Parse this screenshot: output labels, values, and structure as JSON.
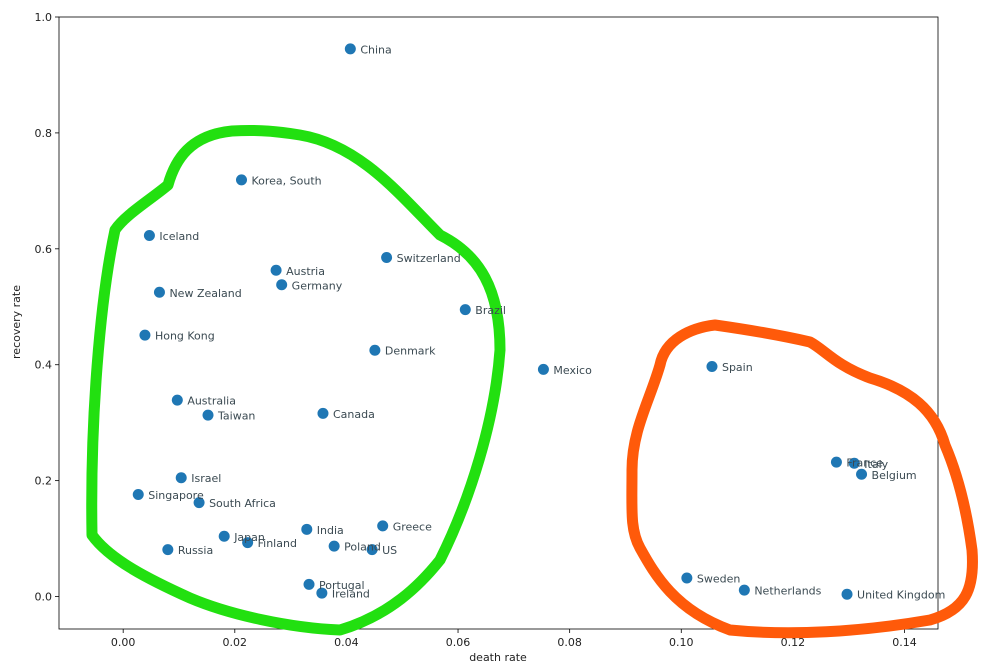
{
  "chart_data": {
    "type": "scatter",
    "title": "",
    "xlabel": "death rate",
    "ylabel": "recovery rate",
    "xlim": [
      -0.0115,
      0.146
    ],
    "ylim": [
      -0.056,
      1.0
    ],
    "xticks": [
      "0.00",
      "0.02",
      "0.04",
      "0.06",
      "0.08",
      "0.10",
      "0.12",
      "0.14"
    ],
    "yticks": [
      "0.0",
      "0.2",
      "0.4",
      "0.6",
      "0.8",
      "1.0"
    ],
    "grid": false,
    "point_color": "#1f77b4",
    "points": [
      {
        "label": "China",
        "x": 0.0407,
        "y": 0.945
      },
      {
        "label": "Korea, South",
        "x": 0.0212,
        "y": 0.719
      },
      {
        "label": "Iceland",
        "x": 0.0047,
        "y": 0.623
      },
      {
        "label": "Switzerland",
        "x": 0.0472,
        "y": 0.585
      },
      {
        "label": "Austria",
        "x": 0.0274,
        "y": 0.563
      },
      {
        "label": "Germany",
        "x": 0.0284,
        "y": 0.538
      },
      {
        "label": "New Zealand",
        "x": 0.0065,
        "y": 0.525
      },
      {
        "label": "Brazil",
        "x": 0.0613,
        "y": 0.495
      },
      {
        "label": "Hong Kong",
        "x": 0.0039,
        "y": 0.451
      },
      {
        "label": "Denmark",
        "x": 0.0451,
        "y": 0.425
      },
      {
        "label": "Mexico",
        "x": 0.0753,
        "y": 0.392
      },
      {
        "label": "Spain",
        "x": 0.1055,
        "y": 0.397
      },
      {
        "label": "Australia",
        "x": 0.0097,
        "y": 0.339
      },
      {
        "label": "Taiwan",
        "x": 0.0152,
        "y": 0.313
      },
      {
        "label": "Canada",
        "x": 0.0358,
        "y": 0.316
      },
      {
        "label": "France",
        "x": 0.1278,
        "y": 0.232
      },
      {
        "label": "Italy",
        "x": 0.131,
        "y": 0.23
      },
      {
        "label": "Belgium",
        "x": 0.1323,
        "y": 0.211
      },
      {
        "label": "Israel",
        "x": 0.0104,
        "y": 0.205
      },
      {
        "label": "Singapore",
        "x": 0.0027,
        "y": 0.176
      },
      {
        "label": "South Africa",
        "x": 0.0136,
        "y": 0.162
      },
      {
        "label": "Greece",
        "x": 0.0465,
        "y": 0.122
      },
      {
        "label": "India",
        "x": 0.0329,
        "y": 0.116
      },
      {
        "label": "Japan",
        "x": 0.0181,
        "y": 0.104
      },
      {
        "label": "Finland",
        "x": 0.0223,
        "y": 0.093
      },
      {
        "label": "Poland",
        "x": 0.0378,
        "y": 0.087
      },
      {
        "label": "US",
        "x": 0.0446,
        "y": 0.081
      },
      {
        "label": "Russia",
        "x": 0.008,
        "y": 0.081
      },
      {
        "label": "Sweden",
        "x": 0.101,
        "y": 0.032
      },
      {
        "label": "Portugal",
        "x": 0.0333,
        "y": 0.021
      },
      {
        "label": "Netherlands",
        "x": 0.1113,
        "y": 0.011
      },
      {
        "label": "Ireland",
        "x": 0.0356,
        "y": 0.006
      },
      {
        "label": "United Kingdom",
        "x": 0.1297,
        "y": 0.004
      }
    ],
    "annotations": [
      {
        "shape": "freehand-loop",
        "color": "#22e010"
      },
      {
        "shape": "freehand-loop",
        "color": "#ff5a0a"
      }
    ]
  }
}
